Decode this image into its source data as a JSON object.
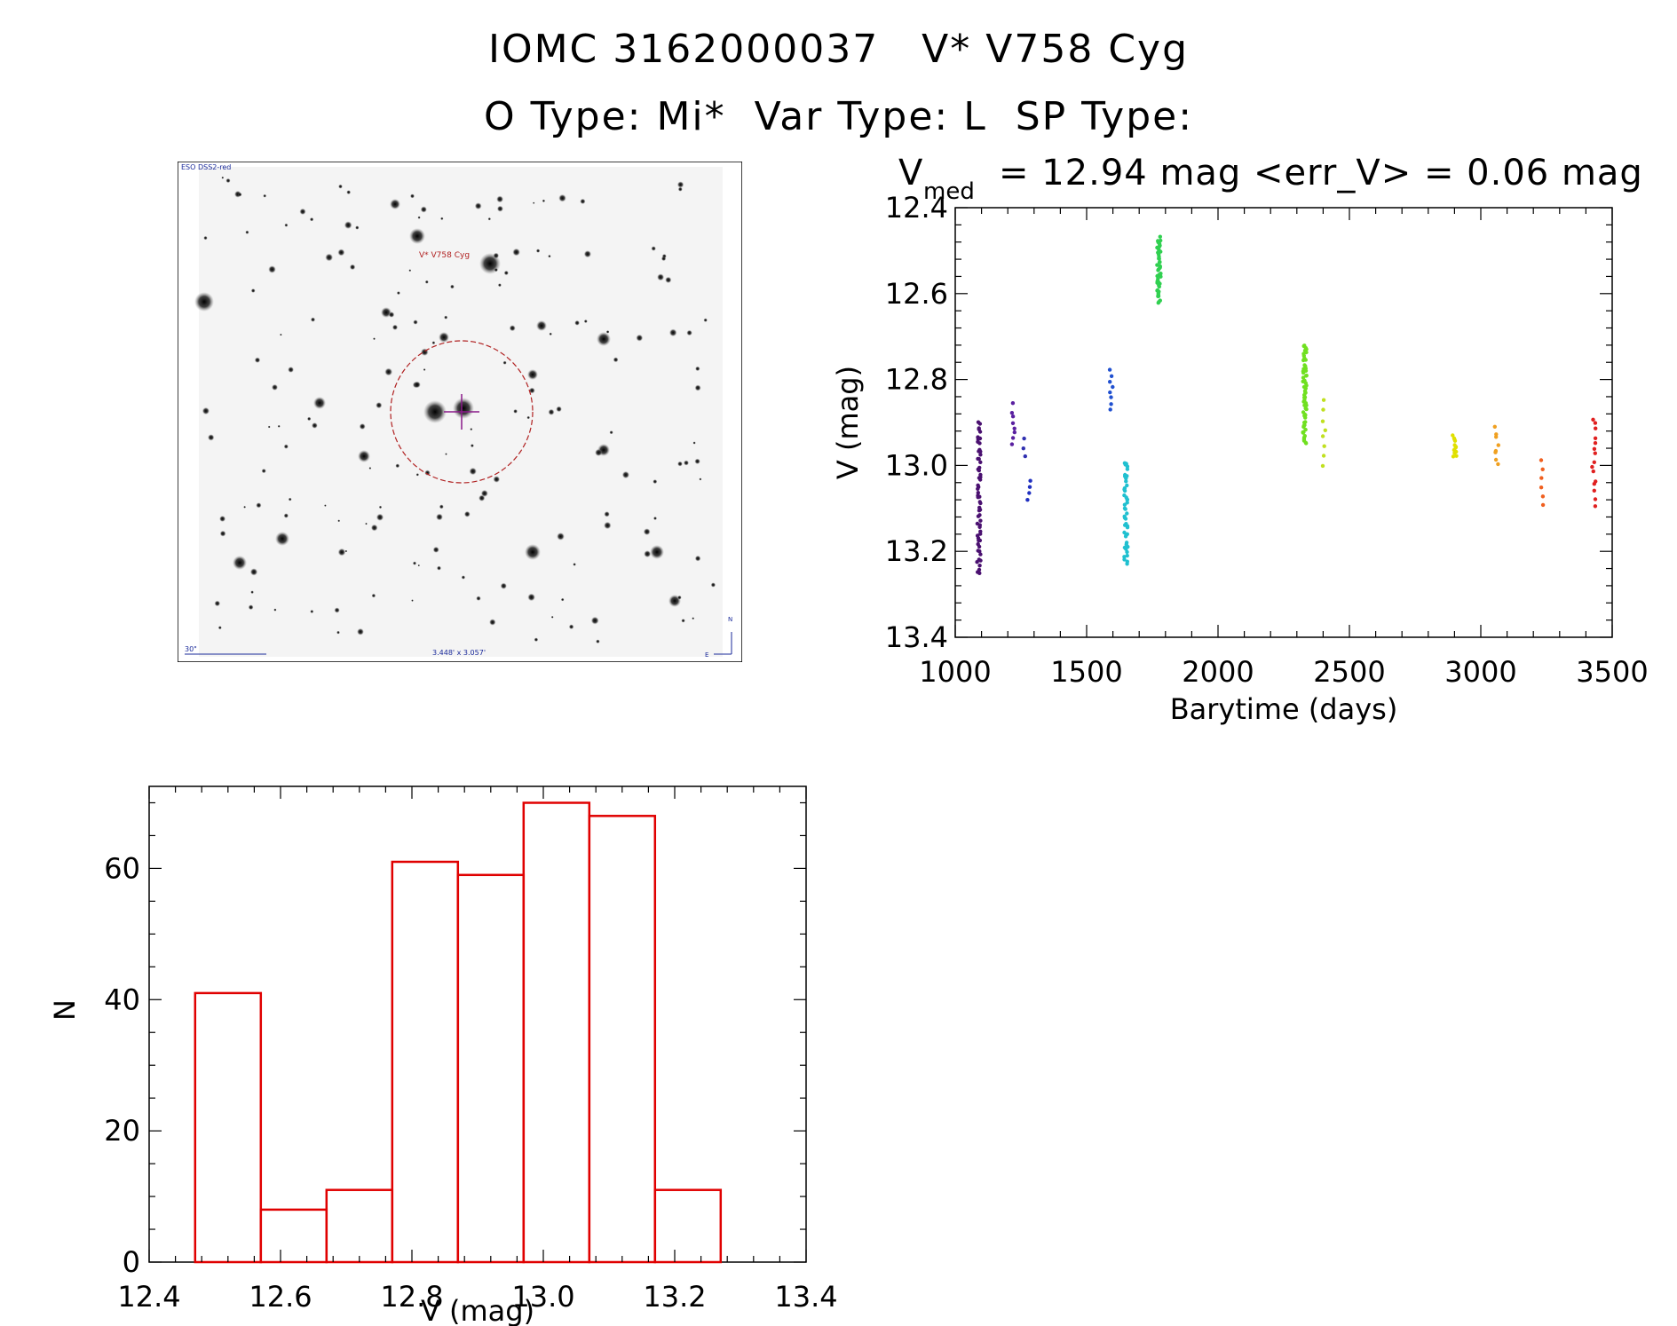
{
  "header": {
    "title_line1": "IOMC 3162000037   V* V758 Cyg",
    "title_line2": "O Type: Mi*  Var Type: L  SP Type:"
  },
  "thumbnail": {
    "survey_label": "ESO DSS2-red",
    "target_label": "V* V758 Cyg",
    "scale_label": "30\"",
    "size_label": "3.448' x 3.057'",
    "north_label": "N",
    "east_label": "E",
    "colors": {
      "circle": "#b02020",
      "marker": "#8a1a8a",
      "text_blue": "#1a2a9a",
      "text_red": "#b02020"
    }
  },
  "chart_data": [
    {
      "type": "scatter",
      "title_parts": {
        "var": "V",
        "sub": "med",
        "rest": "= 12.94 mag <err_V> = 0.06 mag"
      },
      "xlabel": "Barytime (days)",
      "ylabel": "V (mag)",
      "xlim": [
        1000,
        3500
      ],
      "ylim": [
        13.4,
        12.4
      ],
      "y_inverted": true,
      "xticks": [
        "1000",
        "1500",
        "2000",
        "2500",
        "3000",
        "3500"
      ],
      "yticks": [
        "12.4",
        "12.6",
        "12.8",
        "13.0",
        "13.2",
        "13.4"
      ],
      "color_scale": "rainbow by time",
      "groups": [
        {
          "x": 1090,
          "ymin": 12.9,
          "ymax": 13.25,
          "n": 60,
          "color": "#4a1070"
        },
        {
          "x": 1220,
          "ymin": 12.86,
          "ymax": 12.95,
          "n": 8,
          "color": "#5a20a0"
        },
        {
          "x": 1265,
          "ymin": 12.94,
          "ymax": 12.98,
          "n": 3,
          "color": "#3030b0"
        },
        {
          "x": 1280,
          "ymin": 13.04,
          "ymax": 13.08,
          "n": 4,
          "color": "#2030c0"
        },
        {
          "x": 1595,
          "ymin": 12.78,
          "ymax": 12.87,
          "n": 8,
          "color": "#2050d0"
        },
        {
          "x": 1650,
          "ymin": 12.99,
          "ymax": 13.23,
          "n": 45,
          "color": "#20c0d0"
        },
        {
          "x": 1775,
          "ymin": 12.47,
          "ymax": 12.62,
          "n": 45,
          "color": "#30d050"
        },
        {
          "x": 2330,
          "ymin": 12.72,
          "ymax": 12.95,
          "n": 60,
          "color": "#70e020"
        },
        {
          "x": 2405,
          "ymin": 12.85,
          "ymax": 13.0,
          "n": 8,
          "color": "#c0e020"
        },
        {
          "x": 2900,
          "ymin": 12.93,
          "ymax": 12.98,
          "n": 12,
          "color": "#e0e000"
        },
        {
          "x": 3060,
          "ymin": 12.91,
          "ymax": 13.0,
          "n": 8,
          "color": "#f0a020"
        },
        {
          "x": 3230,
          "ymin": 12.99,
          "ymax": 13.09,
          "n": 6,
          "color": "#f06020"
        },
        {
          "x": 3430,
          "ymin": 12.89,
          "ymax": 13.09,
          "n": 15,
          "color": "#e02020"
        }
      ]
    },
    {
      "type": "bar",
      "xlabel": "V (mag)",
      "ylabel": "N",
      "xlim": [
        12.4,
        13.4
      ],
      "ylim": [
        0,
        70
      ],
      "xticks": [
        "12.4",
        "12.6",
        "12.8",
        "13.0",
        "13.2",
        "13.4"
      ],
      "yticks": [
        "0",
        "20",
        "40",
        "60"
      ],
      "bin_edges": [
        12.47,
        12.57,
        12.67,
        12.77,
        12.87,
        12.97,
        13.07,
        13.17,
        13.27
      ],
      "values": [
        41,
        8,
        11,
        61,
        59,
        70,
        68,
        11
      ],
      "color": "#e00000"
    }
  ]
}
